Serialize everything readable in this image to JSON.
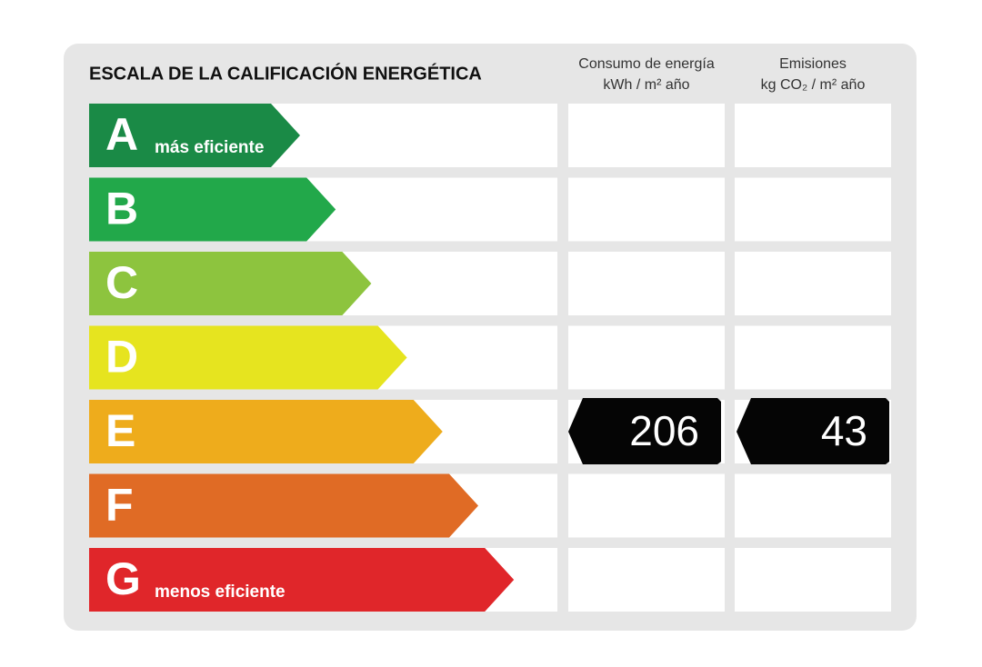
{
  "title": "ESCALA DE LA CALIFICACIÓN ENERGÉTICA",
  "columns": [
    {
      "line1": "Consumo de energía",
      "line2": "kWh / m² año"
    },
    {
      "line1": "Emisiones",
      "line2": "kg CO₂ / m² año"
    }
  ],
  "rows": [
    {
      "letter": "A",
      "label": "más eficiente",
      "color": "#1a8a46"
    },
    {
      "letter": "B",
      "color": "#22a84a"
    },
    {
      "letter": "C",
      "color": "#8dc43e"
    },
    {
      "letter": "D",
      "color": "#e6e41f"
    },
    {
      "letter": "E",
      "color": "#eeac1c",
      "consumption": 206,
      "emissions": 43
    },
    {
      "letter": "F",
      "color": "#e06b25"
    },
    {
      "letter": "G",
      "label": "menos eficiente",
      "color": "#e0262a"
    }
  ]
}
